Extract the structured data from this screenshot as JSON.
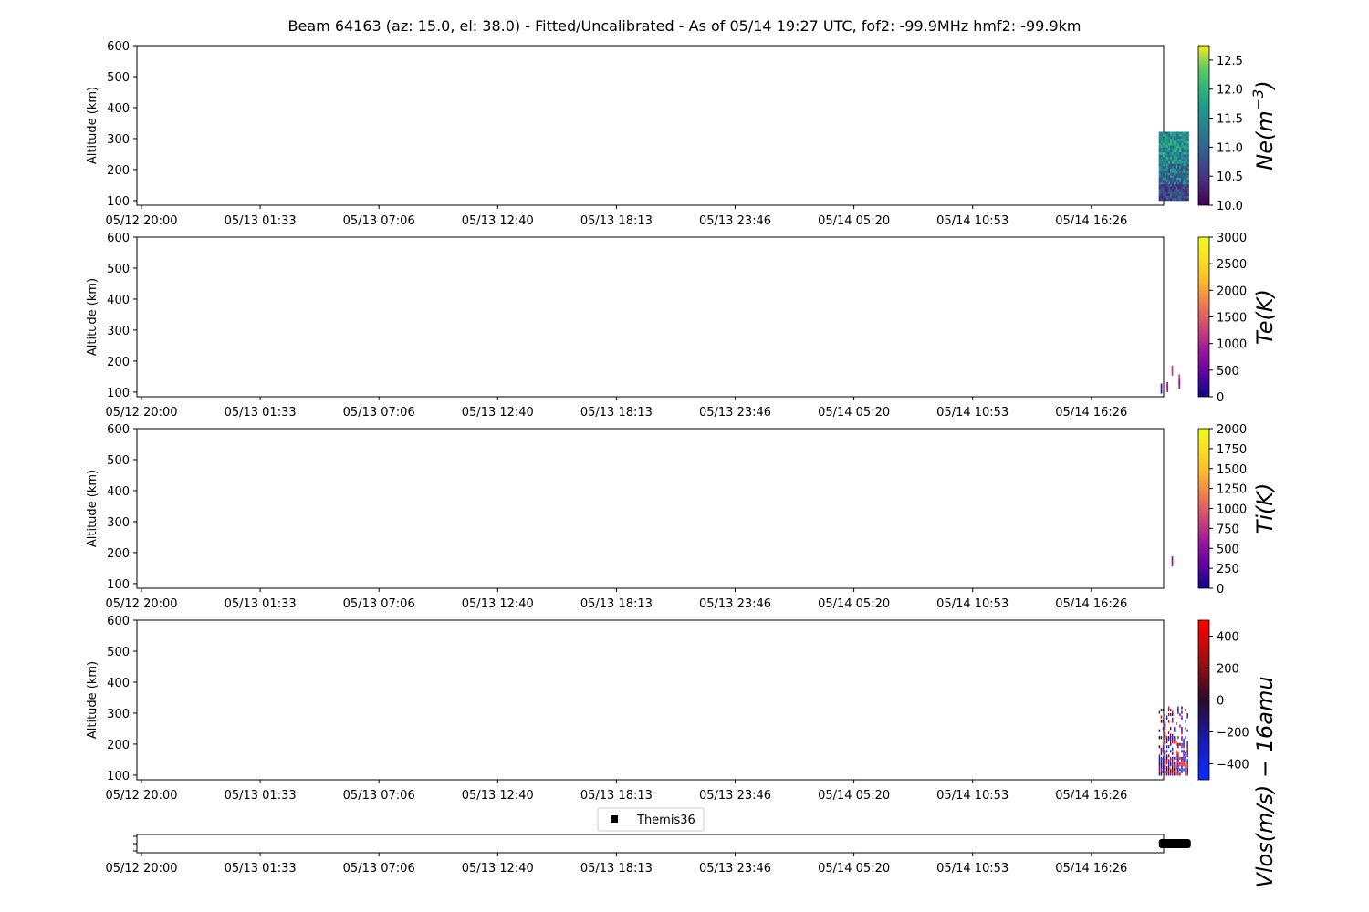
{
  "title": "Beam 64163 (az: 15.0, el: 38.0) - Fitted/Uncalibrated - As of 05/14 19:27 UTC, fof2: -99.9MHz  hmf2: -99.9km",
  "x_tick_labels": [
    "05/12 20:00",
    "05/13 01:33",
    "05/13 07:06",
    "05/13 12:40",
    "05/13 18:13",
    "05/13 23:46",
    "05/14 05:20",
    "05/14 10:53",
    "05/14 16:26"
  ],
  "legend": {
    "label": "Themis36"
  },
  "chart_data": [
    {
      "type": "heatmap",
      "param": "Ne",
      "ylabel": "Altitude (km)",
      "colorbar_label": "Ne(m^-3)",
      "colorbar_label_parts": [
        "Ne(m",
        "−3",
        ")"
      ],
      "colormap": "viridis",
      "yticks": [
        100,
        200,
        300,
        400,
        500,
        600
      ],
      "ylim": [
        85,
        600
      ],
      "cbar_ticks": [
        10.0,
        10.5,
        11.0,
        11.5,
        12.0,
        12.5
      ],
      "cbar_tick_labels": [
        "10.0",
        "10.5",
        "11.0",
        "11.5",
        "12.0",
        "12.5"
      ],
      "clim": [
        10.0,
        12.75
      ],
      "data_time_hours": [
        47.6,
        49.0
      ],
      "data_alt_km": [
        100,
        322
      ],
      "value_range": [
        10.2,
        11.9
      ]
    },
    {
      "type": "heatmap",
      "param": "Te",
      "ylabel": "Altitude (km)",
      "colorbar_label": "Te(K)",
      "colormap": "plasma",
      "yticks": [
        100,
        200,
        300,
        400,
        500,
        600
      ],
      "ylim": [
        85,
        600
      ],
      "cbar_ticks": [
        0,
        500,
        1000,
        1500,
        2000,
        2500,
        3000
      ],
      "cbar_tick_labels": [
        "0",
        "500",
        "1000",
        "1500",
        "2000",
        "2500",
        "3000"
      ],
      "clim": [
        0,
        3000
      ],
      "points": [
        {
          "t": 47.72,
          "alt": 110,
          "value": 700
        },
        {
          "t": 48.0,
          "alt": 115,
          "value": 900
        },
        {
          "t": 48.23,
          "alt": 168,
          "value": 1300
        },
        {
          "t": 48.56,
          "alt": 140,
          "value": 1600
        },
        {
          "t": 48.56,
          "alt": 125,
          "value": 1000
        }
      ]
    },
    {
      "type": "heatmap",
      "param": "Ti",
      "ylabel": "Altitude (km)",
      "colorbar_label": "Ti(K)",
      "colormap": "plasma",
      "yticks": [
        100,
        200,
        300,
        400,
        500,
        600
      ],
      "ylim": [
        85,
        600
      ],
      "cbar_ticks": [
        0,
        250,
        500,
        750,
        1000,
        1250,
        1500,
        1750,
        2000
      ],
      "cbar_tick_labels": [
        "0",
        "250",
        "500",
        "750",
        "1000",
        "1250",
        "1500",
        "1750",
        "2000"
      ],
      "clim": [
        0,
        2000
      ],
      "points": [
        {
          "t": 48.23,
          "alt": 170,
          "value": 800
        }
      ]
    },
    {
      "type": "heatmap",
      "param": "Vlos",
      "ylabel": "Altitude (km)",
      "colorbar_label": "Vlos(m/s) − 16amu",
      "colormap": "red-blue diverging",
      "yticks": [
        100,
        200,
        300,
        400,
        500,
        600
      ],
      "ylim": [
        85,
        600
      ],
      "cbar_ticks": [
        400,
        200,
        0,
        -200,
        -400
      ],
      "cbar_tick_labels": [
        "400",
        "200",
        "0",
        "−200",
        "−400"
      ],
      "clim": [
        -500,
        500
      ],
      "data_time_hours": [
        47.6,
        49.0
      ],
      "data_alt_km": [
        100,
        322
      ],
      "value_range": [
        -500,
        500
      ]
    }
  ],
  "themis_track": {
    "type": "scatter",
    "series": [
      {
        "name": "Themis36",
        "marker": "square",
        "color": "#000000",
        "x_hours": [
          47.6,
          49.1
        ],
        "y": 0
      }
    ]
  }
}
